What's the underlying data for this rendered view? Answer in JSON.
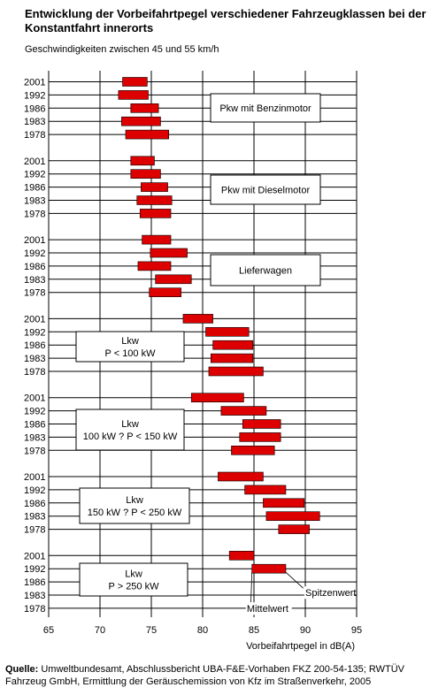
{
  "title": "Entwicklung der Vorbeifahrtpegel verschiedener Fahrzeugklassen bei der Konstantfahrt innerorts",
  "subtitle": "Geschwindigkeiten zwischen 45 und 55 km/h",
  "source_label": "Quelle:",
  "source_text": "Umweltbundesamt, Abschlussbericht UBA-F&E-Vorhaben FKZ 200-54-135; RWTÜV Fahrzeug GmbH, Ermittlung der Geräuschemission von Kfz im Straßenverkehr, 2005",
  "colors": {
    "bar": "#dd0000",
    "bar_edge": "#000000",
    "grid": "#000000"
  },
  "chart_data": {
    "type": "bar",
    "orientation": "horizontal-range",
    "xlabel": "Vorbeifahrtpegel in dB(A)",
    "xlim": [
      65,
      95
    ],
    "xticks": [
      "65",
      "70",
      "75",
      "80",
      "85",
      "90",
      "95"
    ],
    "grid": true,
    "groups": [
      {
        "name": "Pkw mit Benzinmotor",
        "label_lines": [
          "Pkw mit Benzinmotor"
        ],
        "bars": [
          {
            "year": "2001",
            "from": 72.2,
            "to": 74.6
          },
          {
            "year": "1992",
            "from": 71.8,
            "to": 74.7
          },
          {
            "year": "1986",
            "from": 73.0,
            "to": 75.7
          },
          {
            "year": "1983",
            "from": 72.1,
            "to": 75.9
          },
          {
            "year": "1978",
            "from": 72.5,
            "to": 76.7
          }
        ]
      },
      {
        "name": "Pkw mit Dieselmotor",
        "label_lines": [
          "Pkw mit Dieselmotor"
        ],
        "bars": [
          {
            "year": "2001",
            "from": 73.0,
            "to": 75.3
          },
          {
            "year": "1992",
            "from": 73.0,
            "to": 75.9
          },
          {
            "year": "1986",
            "from": 74.0,
            "to": 76.6
          },
          {
            "year": "1983",
            "from": 73.6,
            "to": 77.0
          },
          {
            "year": "1978",
            "from": 73.9,
            "to": 76.9
          }
        ]
      },
      {
        "name": "Lieferwagen",
        "label_lines": [
          "Lieferwagen"
        ],
        "bars": [
          {
            "year": "2001",
            "from": 74.1,
            "to": 76.9
          },
          {
            "year": "1992",
            "from": 74.9,
            "to": 78.5
          },
          {
            "year": "1986",
            "from": 73.7,
            "to": 76.9
          },
          {
            "year": "1983",
            "from": 75.4,
            "to": 78.9
          },
          {
            "year": "1978",
            "from": 74.8,
            "to": 77.9
          }
        ]
      },
      {
        "name": "Lkw P < 100 kW",
        "label_lines": [
          "Lkw",
          "P < 100 kW"
        ],
        "bars": [
          {
            "year": "2001",
            "from": 78.1,
            "to": 81.0
          },
          {
            "year": "1992",
            "from": 80.3,
            "to": 84.5
          },
          {
            "year": "1986",
            "from": 81.0,
            "to": 84.9
          },
          {
            "year": "1983",
            "from": 80.8,
            "to": 84.9
          },
          {
            "year": "1978",
            "from": 80.6,
            "to": 85.9
          }
        ]
      },
      {
        "name": "Lkw 100 kW ? P < 150 kW",
        "label_lines": [
          "Lkw",
          "100 kW ? P < 150 kW"
        ],
        "bars": [
          {
            "year": "2001",
            "from": 78.9,
            "to": 84.0
          },
          {
            "year": "1992",
            "from": 81.8,
            "to": 86.2
          },
          {
            "year": "1986",
            "from": 83.9,
            "to": 87.6
          },
          {
            "year": "1983",
            "from": 83.6,
            "to": 87.6
          },
          {
            "year": "1978",
            "from": 82.8,
            "to": 87.0
          }
        ]
      },
      {
        "name": "Lkw 150 kW ? P < 250 kW",
        "label_lines": [
          "Lkw",
          "150 kW ? P < 250 kW"
        ],
        "bars": [
          {
            "year": "2001",
            "from": 81.5,
            "to": 85.9
          },
          {
            "year": "1992",
            "from": 84.1,
            "to": 88.1
          },
          {
            "year": "1986",
            "from": 85.9,
            "to": 89.9
          },
          {
            "year": "1983",
            "from": 86.2,
            "to": 91.4
          },
          {
            "year": "1978",
            "from": 87.4,
            "to": 90.4
          }
        ]
      },
      {
        "name": "Lkw P > 250 kW",
        "label_lines": [
          "Lkw",
          "P > 250 kW"
        ],
        "bars": [
          {
            "year": "2001",
            "from": 82.6,
            "to": 85.0
          },
          {
            "year": "1992",
            "from": 84.8,
            "to": 88.1
          },
          {
            "year": "1986",
            "from": null,
            "to": null
          },
          {
            "year": "1983",
            "from": null,
            "to": null
          },
          {
            "year": "1978",
            "from": null,
            "to": null
          }
        ]
      }
    ],
    "annotations": [
      {
        "text": "Spitzenwert",
        "points_to": "bar end (to)"
      },
      {
        "text": "Mittelwert",
        "points_to": "bar start (from)"
      }
    ]
  }
}
